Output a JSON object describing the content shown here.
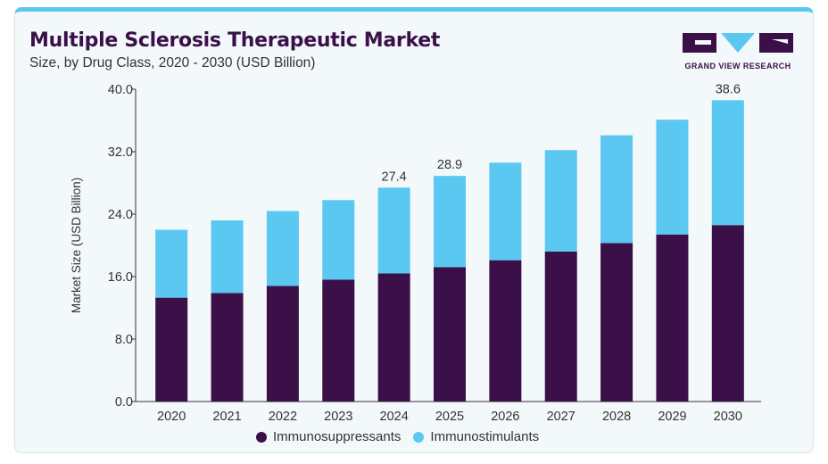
{
  "header": {
    "title": "Multiple Sclerosis Therapeutic Market",
    "subtitle": "Size, by Drug Class, 2020 - 2030 (USD Billion)"
  },
  "brand": {
    "name": "GRAND VIEW RESEARCH",
    "logo_icon": "grand-view-research-logo",
    "color_primary": "#3b1048",
    "color_accent": "#5bc8f2"
  },
  "chart_data": {
    "type": "bar",
    "stacked": true,
    "title": "Multiple Sclerosis Therapeutic Market",
    "subtitle": "Size, by Drug Class, 2020 - 2030 (USD Billion)",
    "xlabel": "",
    "ylabel": "Market Size (USD Billion)",
    "ylim": [
      0,
      40
    ],
    "yticks": [
      "0.0",
      "8.0",
      "16.0",
      "24.0",
      "32.0",
      "40.0"
    ],
    "grid": false,
    "legend_position": "bottom",
    "categories": [
      "2020",
      "2021",
      "2022",
      "2023",
      "2024",
      "2025",
      "2026",
      "2027",
      "2028",
      "2029",
      "2030"
    ],
    "series": [
      {
        "name": "Immunosuppressants",
        "color": "#3b1048",
        "values": [
          13.3,
          13.9,
          14.8,
          15.6,
          16.4,
          17.2,
          18.1,
          19.2,
          20.3,
          21.4,
          22.6
        ]
      },
      {
        "name": "Immunostimulants",
        "color": "#5bc8f2",
        "values": [
          8.7,
          9.3,
          9.6,
          10.2,
          11.0,
          11.7,
          12.5,
          13.0,
          13.8,
          14.7,
          16.0
        ]
      }
    ],
    "data_labels": [
      {
        "category": "2024",
        "text": "27.4"
      },
      {
        "category": "2025",
        "text": "28.9"
      },
      {
        "category": "2030",
        "text": "38.6"
      }
    ]
  }
}
